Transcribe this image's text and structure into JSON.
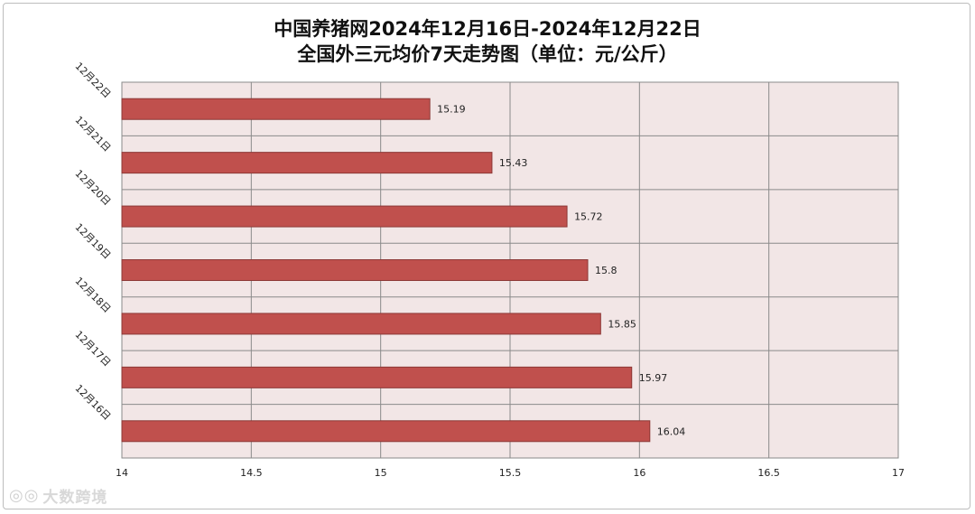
{
  "chart_data": {
    "type": "bar",
    "orientation": "horizontal",
    "title_line1": "中国养猪网2024年12月16日-2024年12月22日",
    "title_line2": "全国外三元均价7天走势图（单位：元/公斤）",
    "categories": [
      "12月22日",
      "12月21日",
      "12月20日",
      "12月19日",
      "12月18日",
      "12月17日",
      "12月16日"
    ],
    "values": [
      15.19,
      15.43,
      15.72,
      15.8,
      15.85,
      15.97,
      16.04
    ],
    "data_labels": [
      "15.19",
      "15.43",
      "15.72",
      "15.8",
      "15.85",
      "15.97",
      "16.04"
    ],
    "xlim": [
      14,
      17
    ],
    "xticks": [
      "14",
      "14.5",
      "15",
      "15.5",
      "16",
      "16.5",
      "17"
    ],
    "xtick_values": [
      14,
      14.5,
      15,
      15.5,
      16,
      16.5,
      17
    ],
    "grid": true,
    "bar_color": "#c0504d",
    "bar_border": "#8c3836",
    "plot_bg": "#f2e6e6"
  },
  "watermark": {
    "icon": "weibo-eye-icon",
    "text": "大数跨境"
  }
}
